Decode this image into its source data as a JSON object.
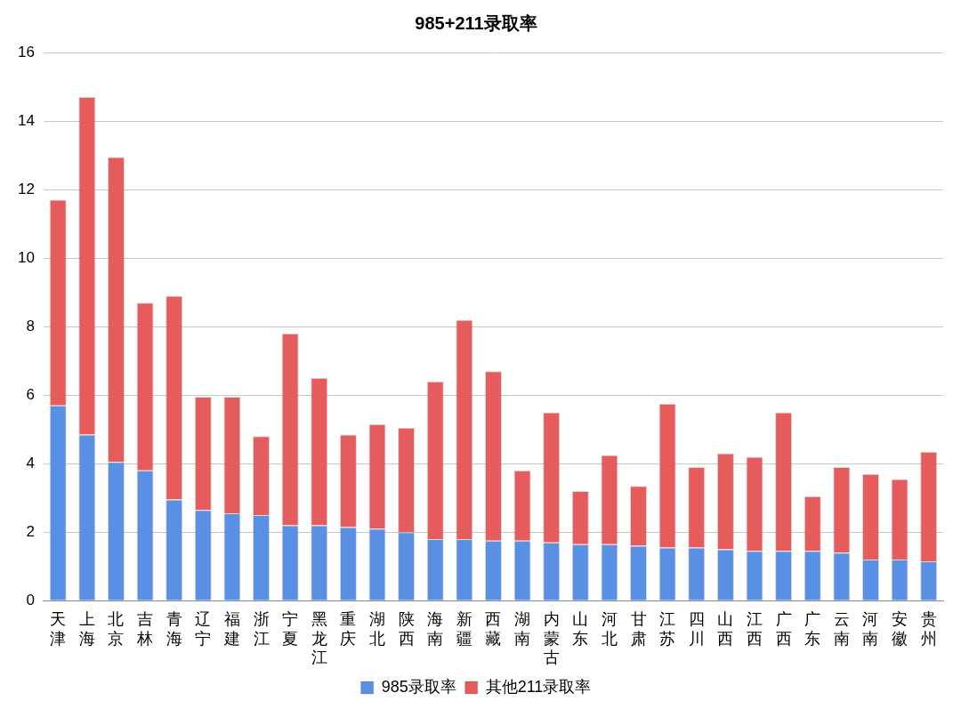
{
  "chart_data": {
    "type": "bar",
    "title": "985+211录取率",
    "stacked": true,
    "grid": true,
    "legend": "bottom",
    "categories": [
      "天津",
      "上海",
      "北京",
      "吉林",
      "青海",
      "辽宁",
      "福建",
      "浙江",
      "宁夏",
      "黑龙江",
      "重庆",
      "湖北",
      "陕西",
      "海南",
      "新疆",
      "西藏",
      "湖南",
      "内蒙古",
      "山东",
      "河北",
      "甘肃",
      "江苏",
      "四川",
      "山西",
      "江西",
      "广西",
      "广东",
      "云南",
      "河南",
      "安徽",
      "贵州"
    ],
    "series": [
      {
        "name": "985录取率",
        "color": "#5a90e3",
        "values": [
          5.7,
          4.85,
          4.05,
          3.8,
          2.95,
          2.65,
          2.55,
          2.5,
          2.2,
          2.2,
          2.15,
          2.1,
          2.0,
          1.8,
          1.8,
          1.75,
          1.75,
          1.7,
          1.65,
          1.65,
          1.6,
          1.55,
          1.55,
          1.5,
          1.45,
          1.45,
          1.45,
          1.4,
          1.2,
          1.2,
          1.15
        ]
      },
      {
        "name": "其他211录取率",
        "color": "#e65c5c",
        "values": [
          6.0,
          9.85,
          8.9,
          4.9,
          5.95,
          3.3,
          3.4,
          2.3,
          5.6,
          4.3,
          2.7,
          3.05,
          3.05,
          4.6,
          6.4,
          4.95,
          2.05,
          3.8,
          1.55,
          2.6,
          1.75,
          4.2,
          2.35,
          2.8,
          2.75,
          4.05,
          1.6,
          2.5,
          2.5,
          2.35,
          3.2
        ]
      }
    ],
    "ylim": [
      0,
      16
    ],
    "yticks": [
      0,
      2,
      4,
      6,
      8,
      10,
      12,
      14,
      16
    ]
  }
}
